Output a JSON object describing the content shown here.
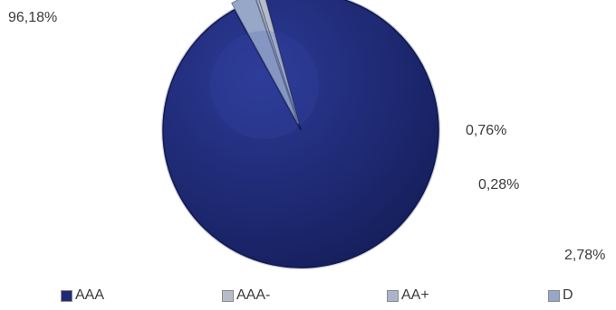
{
  "chart_data": {
    "type": "pie",
    "title": "",
    "labels": [
      "AAA",
      "AAA-",
      "AA+",
      "D"
    ],
    "values": [
      96.18,
      0.76,
      0.28,
      2.78
    ],
    "value_labels": [
      "96,18%",
      "0,76%",
      "0,28%",
      "2,78%"
    ],
    "colors": [
      "#1e2a78",
      "#b8bcc8",
      "#aab5cc",
      "#97a7c7"
    ],
    "legend_position": "bottom",
    "unit": "%"
  }
}
